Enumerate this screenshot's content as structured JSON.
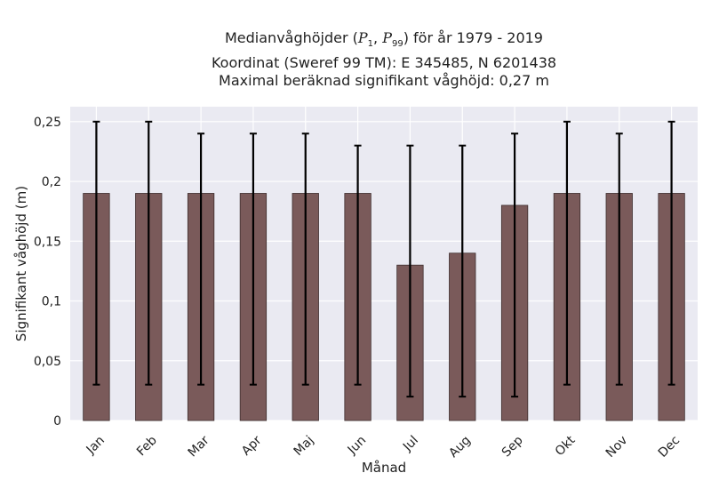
{
  "chart_data": {
    "type": "bar",
    "title": {
      "line1_prefix": "Medianvåghöjder (",
      "p1_symbol": "P",
      "p1_sub": "1",
      "separator": ", ",
      "p99_symbol": "P",
      "p99_sub": "99",
      "line1_suffix": ") för år 1979 - 2019",
      "line2": "Koordinat (Sweref 99 TM): E 345485, N 6201438",
      "line3": "Maximal beräknad signifikant våghöjd: 0,27 m"
    },
    "xlabel": "Månad",
    "ylabel": "Signifikant våghöjd (m)",
    "categories": [
      "Jan",
      "Feb",
      "Mar",
      "Apr",
      "Maj",
      "Jun",
      "Jul",
      "Aug",
      "Sep",
      "Okt",
      "Nov",
      "Dec"
    ],
    "values": [
      0.19,
      0.19,
      0.19,
      0.19,
      0.19,
      0.19,
      0.13,
      0.14,
      0.18,
      0.19,
      0.19,
      0.19
    ],
    "err_low": [
      0.03,
      0.03,
      0.03,
      0.03,
      0.03,
      0.03,
      0.02,
      0.02,
      0.02,
      0.03,
      0.03,
      0.03
    ],
    "err_high": [
      0.25,
      0.25,
      0.24,
      0.24,
      0.24,
      0.23,
      0.23,
      0.23,
      0.24,
      0.25,
      0.24,
      0.25
    ],
    "ylim": [
      0,
      0.2625
    ],
    "yticks": [
      0,
      0.05,
      0.1,
      0.15,
      0.2,
      0.25
    ],
    "ytick_labels": [
      "0",
      "0,05",
      "0,1",
      "0,15",
      "0,2",
      "0,25"
    ],
    "grid": true,
    "colors": {
      "bar": "#7a5a5a",
      "bar_edge": "#3d2d2d",
      "error": "#000000",
      "plot_bg": "#eaeaf2",
      "grid": "#ffffff"
    }
  }
}
